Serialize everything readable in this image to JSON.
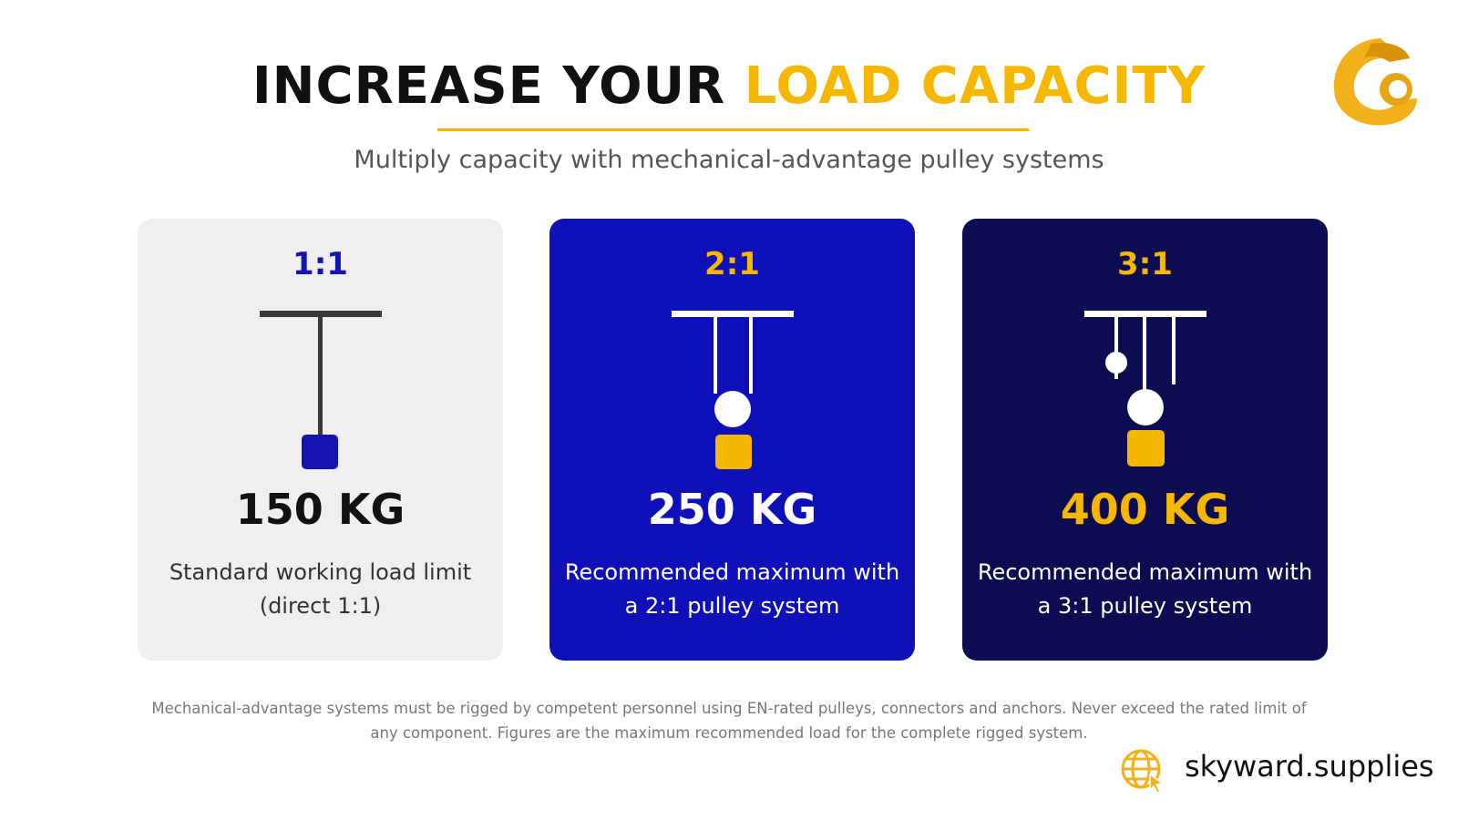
{
  "header": {
    "title_dark": "INCREASE YOUR",
    "title_highlight": "LOAD CAPACITY",
    "subtitle": "Multiply capacity with mechanical-advantage pulley systems"
  },
  "cards": [
    {
      "ratio": "1:1",
      "load": "150 KG",
      "description": [
        "Standard working load limit",
        "(direct 1:1)"
      ]
    },
    {
      "ratio": "2:1",
      "load": "250 KG",
      "description": [
        "Recommended maximum with",
        "a 2:1 pulley system"
      ]
    },
    {
      "ratio": "3:1",
      "load": "400 KG",
      "description": [
        "Recommended maximum with",
        "a 3:1 pulley system"
      ]
    }
  ],
  "footnote": [
    "Mechanical-advantage systems must be rigged by competent personnel using EN-rated pulleys, connectors and anchors. Never exceed the rated limit of",
    "any component. Figures are the maximum recommended load for the complete rigged system."
  ],
  "footer": {
    "website": "skyward.supplies"
  }
}
